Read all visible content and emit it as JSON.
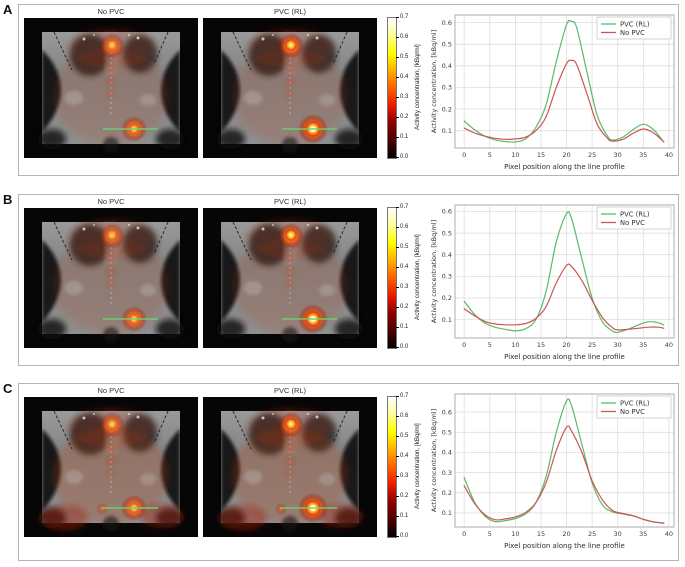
{
  "figure": {
    "panels": [
      {
        "label": "A",
        "images": [
          {
            "title": "No PVC"
          },
          {
            "title": "PVC (RL)"
          }
        ],
        "colorbar": {
          "label": "Activity concentration, [kBq/ml]",
          "ticks": [
            "0.0",
            "0.1",
            "0.2",
            "0.3",
            "0.4",
            "0.5",
            "0.6",
            "0.7"
          ],
          "vmin": 0.0,
          "vmax": 0.7
        }
      },
      {
        "label": "B",
        "images": [
          {
            "title": "No PVC"
          },
          {
            "title": "PVC (RL)"
          }
        ],
        "colorbar": {
          "label": "Activity concentration, [kBq/ml]",
          "ticks": [
            "0.0",
            "0.1",
            "0.2",
            "0.3",
            "0.4",
            "0.5",
            "0.6",
            "0.7"
          ],
          "vmin": 0.0,
          "vmax": 0.7
        }
      },
      {
        "label": "C",
        "images": [
          {
            "title": "No PVC"
          },
          {
            "title": "PVC (RL)"
          }
        ],
        "colorbar": {
          "label": "Activity concentration, [kBq/ml]",
          "ticks": [
            "0.0",
            "0.1",
            "0.2",
            "0.3",
            "0.4",
            "0.5",
            "0.6",
            "0.7"
          ],
          "vmin": 0.0,
          "vmax": 0.7
        }
      }
    ],
    "colors": {
      "pvc_line": "#5ab969",
      "no_pvc_line": "#cd5555",
      "profile_overlay_line": "#6fd06f"
    }
  },
  "chart_data": [
    {
      "type": "line",
      "panel": "A",
      "xlabel": "Pixel position along the line profile",
      "ylabel": "Activity concentration, [kBq/ml]",
      "x_ticks": [
        0,
        5,
        10,
        15,
        20,
        25,
        30,
        35,
        40
      ],
      "y_ticks": [
        0.1,
        0.2,
        0.3,
        0.4,
        0.5,
        0.6
      ],
      "xlim": [
        -1.8,
        41
      ],
      "ylim": [
        0.02,
        0.635
      ],
      "grid": true,
      "legend_position": "upper right",
      "x": [
        0,
        2,
        4,
        6,
        8,
        10,
        12,
        14,
        16,
        18,
        20,
        21,
        22,
        24,
        26,
        28,
        29,
        31,
        33,
        35,
        37,
        39
      ],
      "series": [
        {
          "name": "PVC (RL)",
          "color": "#5ab969",
          "y": [
            0.145,
            0.105,
            0.075,
            0.058,
            0.05,
            0.048,
            0.062,
            0.115,
            0.22,
            0.42,
            0.59,
            0.605,
            0.575,
            0.37,
            0.17,
            0.075,
            0.057,
            0.07,
            0.105,
            0.13,
            0.105,
            0.048
          ]
        },
        {
          "name": "No PVC",
          "color": "#cd5555",
          "y": [
            0.112,
            0.09,
            0.075,
            0.065,
            0.06,
            0.062,
            0.07,
            0.1,
            0.165,
            0.3,
            0.41,
            0.425,
            0.405,
            0.27,
            0.13,
            0.065,
            0.052,
            0.06,
            0.088,
            0.108,
            0.09,
            0.048
          ]
        }
      ]
    },
    {
      "type": "line",
      "panel": "B",
      "xlabel": "Pixel position along the line profile",
      "ylabel": "Activity concentration, [kBq/ml]",
      "x_ticks": [
        0,
        5,
        10,
        15,
        20,
        25,
        30,
        35,
        40
      ],
      "y_ticks": [
        0.1,
        0.2,
        0.3,
        0.4,
        0.5,
        0.6
      ],
      "xlim": [
        -1.8,
        41
      ],
      "ylim": [
        0.015,
        0.63
      ],
      "grid": true,
      "legend_position": "upper right",
      "x": [
        0,
        2,
        4,
        6,
        8,
        10,
        12,
        14,
        16,
        18,
        20,
        21,
        23,
        25,
        27,
        29,
        30,
        32,
        34,
        36,
        38,
        39
      ],
      "series": [
        {
          "name": "PVC (RL)",
          "color": "#5ab969",
          "y": [
            0.185,
            0.125,
            0.085,
            0.065,
            0.055,
            0.048,
            0.058,
            0.1,
            0.23,
            0.46,
            0.59,
            0.565,
            0.38,
            0.2,
            0.09,
            0.047,
            0.042,
            0.055,
            0.075,
            0.09,
            0.085,
            0.075
          ]
        },
        {
          "name": "No PVC",
          "color": "#cd5555",
          "y": [
            0.15,
            0.118,
            0.092,
            0.08,
            0.076,
            0.076,
            0.082,
            0.105,
            0.16,
            0.27,
            0.35,
            0.345,
            0.28,
            0.19,
            0.11,
            0.062,
            0.053,
            0.055,
            0.06,
            0.065,
            0.065,
            0.06
          ]
        }
      ]
    },
    {
      "type": "line",
      "panel": "C",
      "xlabel": "Pixel position along the line profile",
      "ylabel": "Activity concentration, [kBq/ml]",
      "x_ticks": [
        0,
        5,
        10,
        15,
        20,
        25,
        30,
        35,
        40
      ],
      "y_ticks": [
        0.1,
        0.2,
        0.3,
        0.4,
        0.5,
        0.6
      ],
      "xlim": [
        -1.8,
        41
      ],
      "ylim": [
        0.03,
        0.69
      ],
      "grid": true,
      "legend_position": "upper right",
      "x": [
        0,
        2,
        4,
        6,
        8,
        10,
        12,
        14,
        16,
        18,
        20,
        21,
        23,
        25,
        27,
        29,
        31,
        33,
        35,
        37,
        39
      ],
      "series": [
        {
          "name": "PVC (RL)",
          "color": "#5ab969",
          "y": [
            0.275,
            0.155,
            0.085,
            0.057,
            0.062,
            0.072,
            0.095,
            0.15,
            0.28,
            0.5,
            0.655,
            0.63,
            0.44,
            0.25,
            0.14,
            0.105,
            0.095,
            0.085,
            0.068,
            0.055,
            0.048
          ]
        },
        {
          "name": "No PVC",
          "color": "#cd5555",
          "y": [
            0.235,
            0.148,
            0.092,
            0.066,
            0.07,
            0.08,
            0.102,
            0.15,
            0.25,
            0.41,
            0.525,
            0.505,
            0.4,
            0.26,
            0.165,
            0.112,
            0.097,
            0.086,
            0.068,
            0.056,
            0.05
          ]
        }
      ]
    }
  ]
}
